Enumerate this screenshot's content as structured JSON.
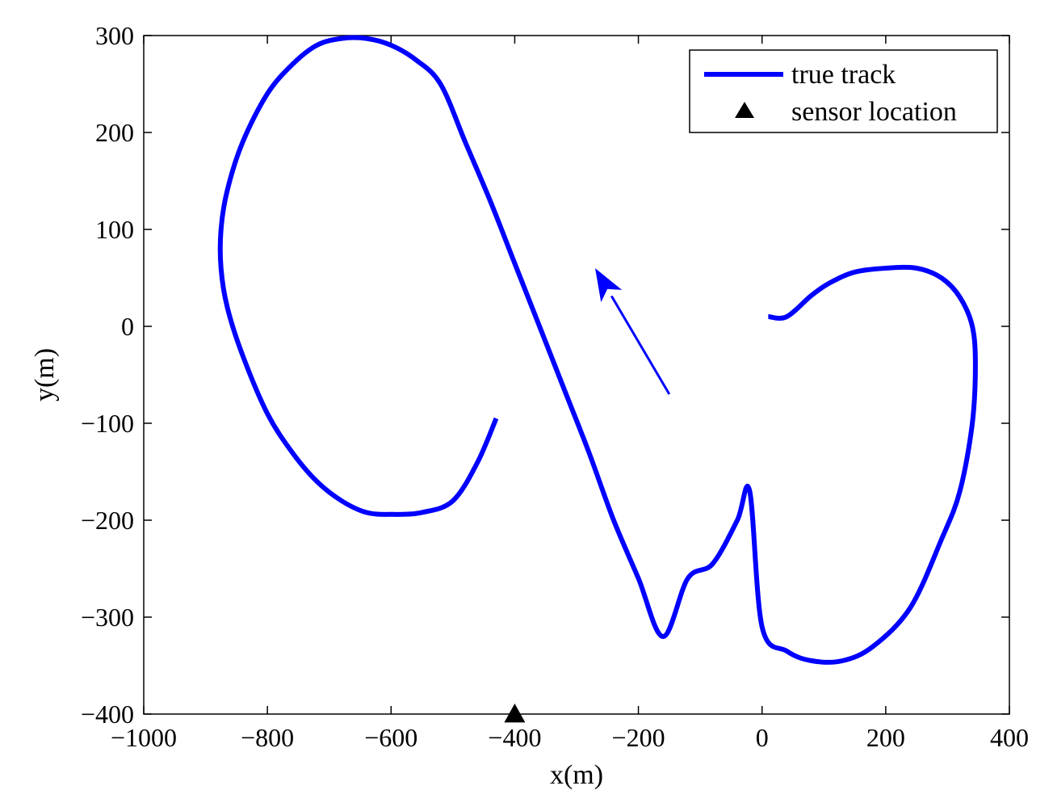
{
  "chart_data": {
    "type": "line",
    "xlabel": "x(m)",
    "ylabel": "y(m)",
    "xlim": [
      -1000,
      400
    ],
    "ylim": [
      -400,
      300
    ],
    "xticks": [
      -1000,
      -800,
      -600,
      -400,
      -200,
      0,
      200,
      400
    ],
    "yticks": [
      -400,
      -300,
      -200,
      -100,
      0,
      100,
      200,
      300
    ],
    "xtick_labels": [
      "−1000",
      "−800",
      "−600",
      "−400",
      "−200",
      "0",
      "200",
      "400"
    ],
    "ytick_labels": [
      "−400",
      "−300",
      "−200",
      "−100",
      "0",
      "100",
      "200",
      "300"
    ],
    "grid": false,
    "legend_position": "top-right",
    "colors": {
      "track": "#0000ff",
      "sensor": "#000000",
      "axes": "#000000"
    },
    "series": [
      {
        "name": "true track",
        "kind": "line",
        "x": [
          -430,
          -460,
          -500,
          -550,
          -600,
          -640,
          -680,
          -720,
          -760,
          -800,
          -840,
          -865,
          -875,
          -875,
          -865,
          -840,
          -800,
          -760,
          -720,
          -680,
          -640,
          -600,
          -560,
          -520,
          -480,
          -440,
          -400,
          -360,
          -320,
          -280,
          -240,
          -200,
          -160,
          -120,
          -80,
          -40,
          -20,
          0,
          40,
          80,
          130,
          180,
          240,
          290,
          320,
          340,
          345,
          340,
          320,
          290,
          250,
          200,
          150,
          110,
          80,
          40,
          10
        ],
        "y": [
          -95,
          -140,
          -180,
          -192,
          -194,
          -192,
          -180,
          -160,
          -130,
          -90,
          -30,
          20,
          60,
          100,
          140,
          190,
          240,
          270,
          290,
          297,
          297,
          290,
          275,
          250,
          190,
          130,
          65,
          0,
          -65,
          -130,
          -200,
          -260,
          -320,
          -260,
          -245,
          -200,
          -170,
          -310,
          -335,
          -345,
          -345,
          -330,
          -290,
          -220,
          -170,
          -100,
          -40,
          0,
          30,
          50,
          60,
          60,
          56,
          45,
          32,
          10,
          10
        ]
      },
      {
        "name": "sensor location",
        "kind": "marker",
        "marker": "triangle",
        "x": [
          -400
        ],
        "y": [
          -400
        ]
      }
    ],
    "annotations": [
      {
        "kind": "arrow",
        "from": [
          -150,
          -70
        ],
        "to": [
          -270,
          60
        ]
      }
    ]
  }
}
